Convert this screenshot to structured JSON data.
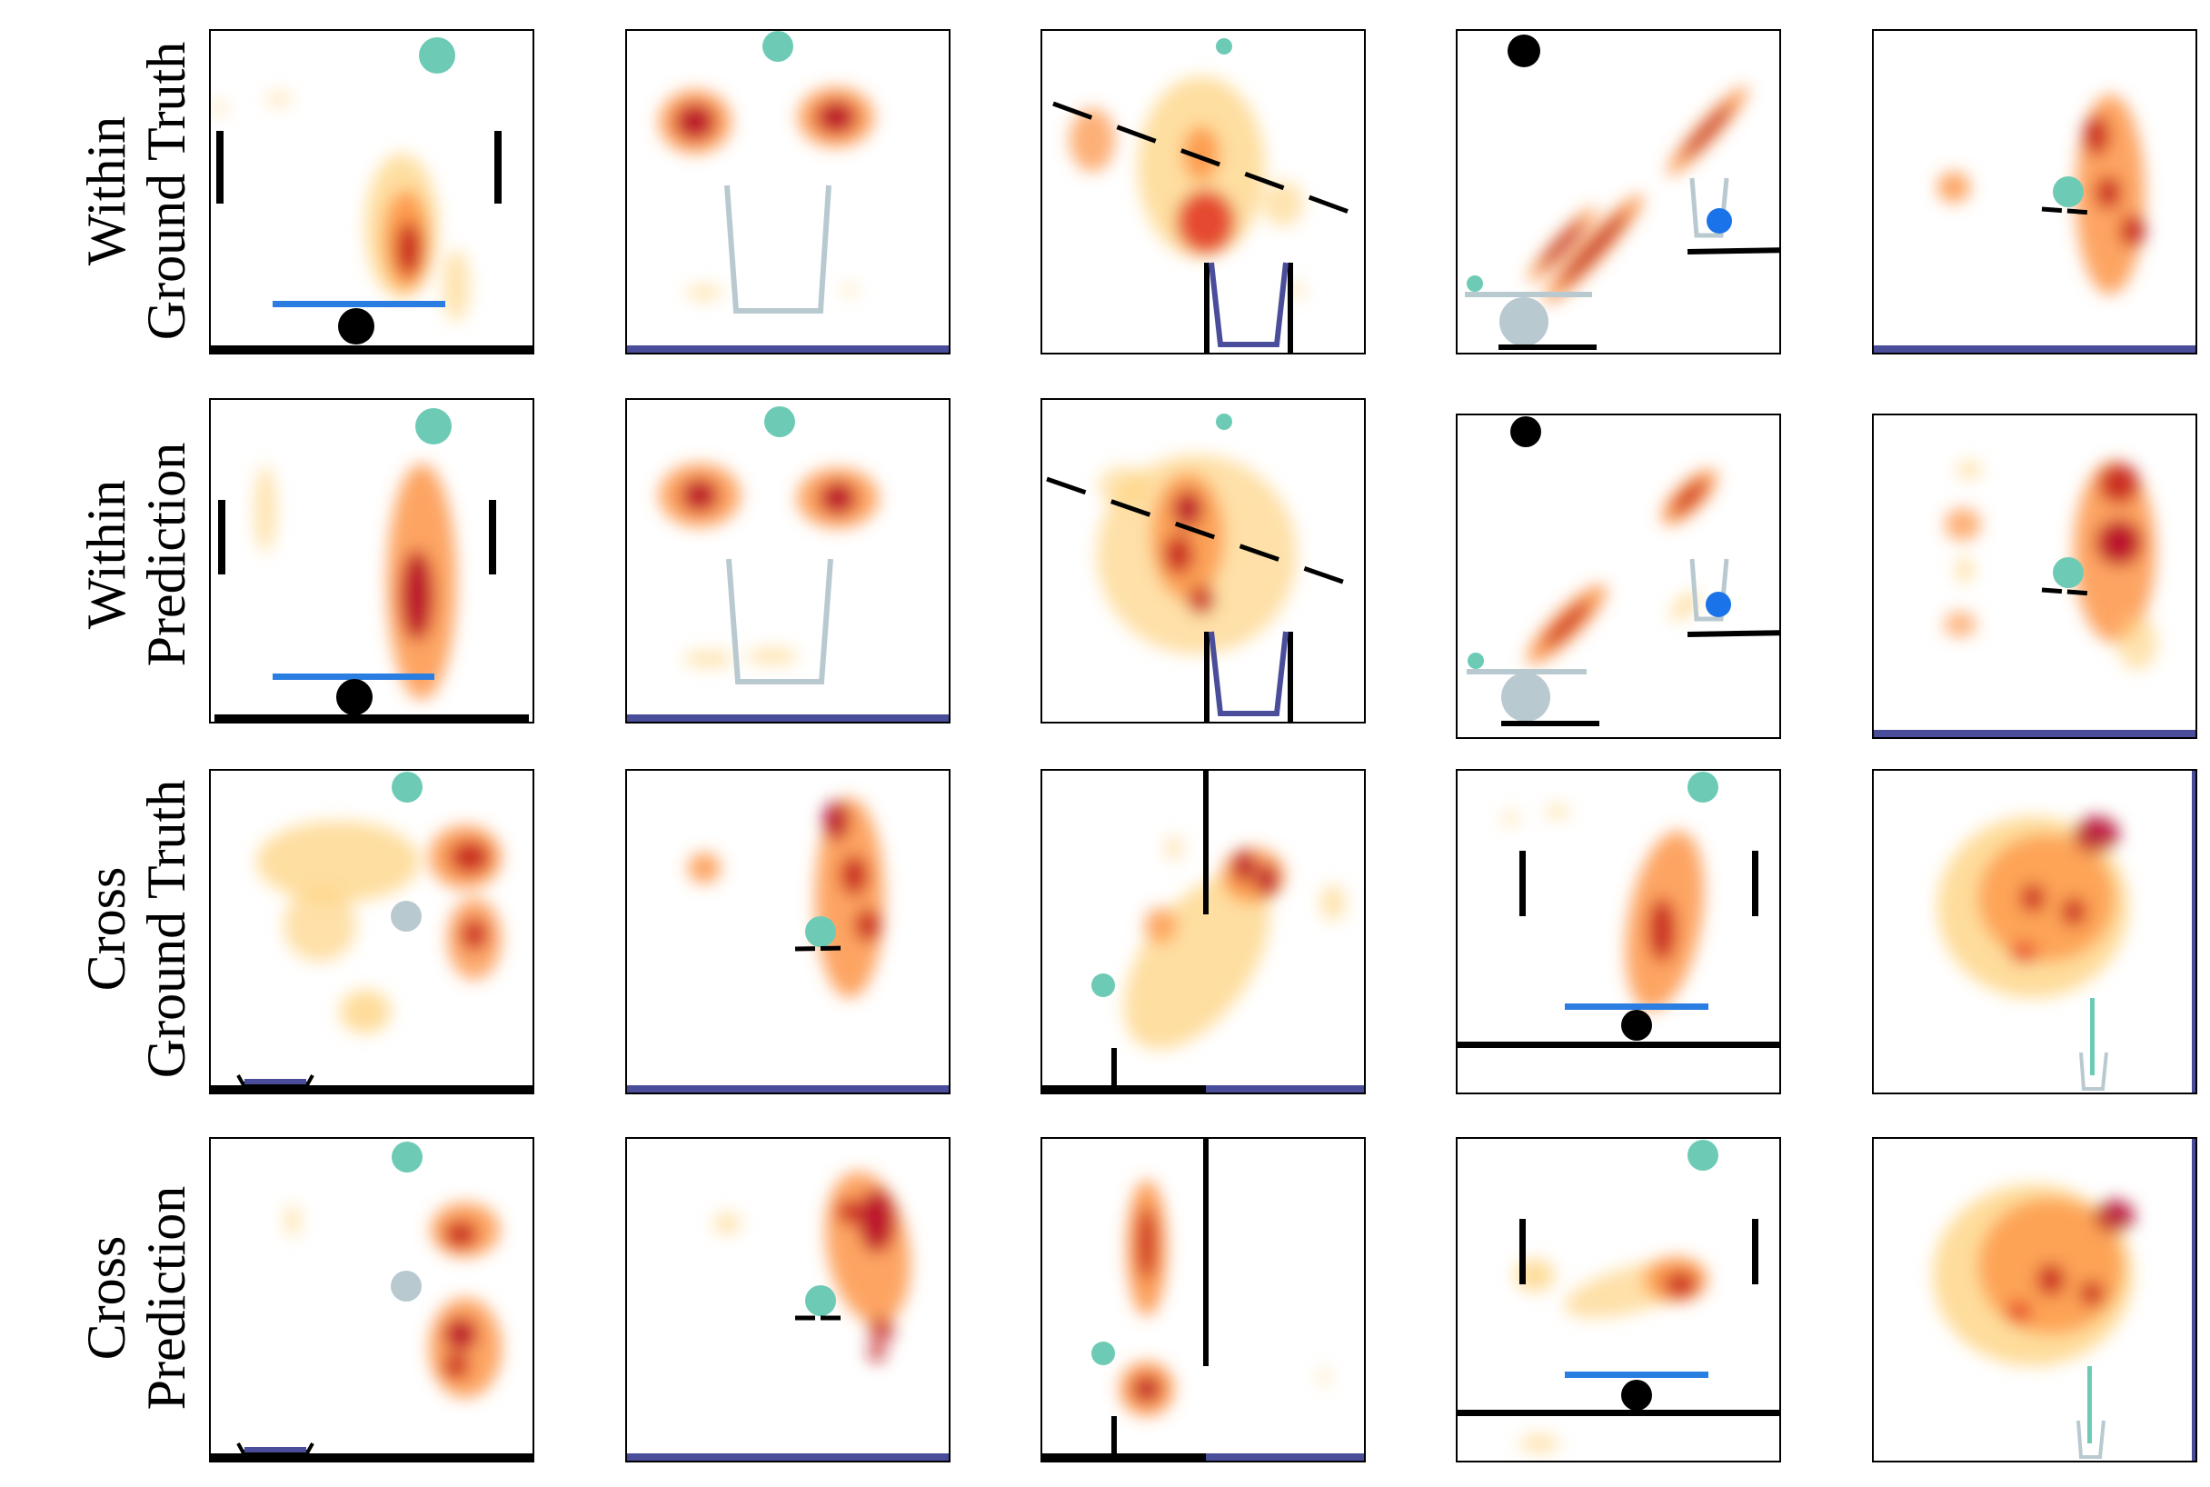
{
  "figure": {
    "rows": [
      {
        "line1": "Within",
        "line2": "Ground Truth"
      },
      {
        "line1": "Within",
        "line2": "Prediction"
      },
      {
        "line1": "Cross",
        "line2": "Ground Truth"
      },
      {
        "line1": "Cross",
        "line2": "Prediction"
      }
    ],
    "columns": 5,
    "colors": {
      "goal_ball": "#6dcbb5",
      "blue_ball": "#1a73e8",
      "blue_bar": "#2a7de1",
      "ground_dark_blue": "#4a4e9a",
      "cup_gray": "#b9c9d0",
      "black": "#000000",
      "heatmap_scale": [
        "#fff3b0",
        "#fed079",
        "#fc8d3c",
        "#e0301e",
        "#b10026"
      ]
    }
  }
}
